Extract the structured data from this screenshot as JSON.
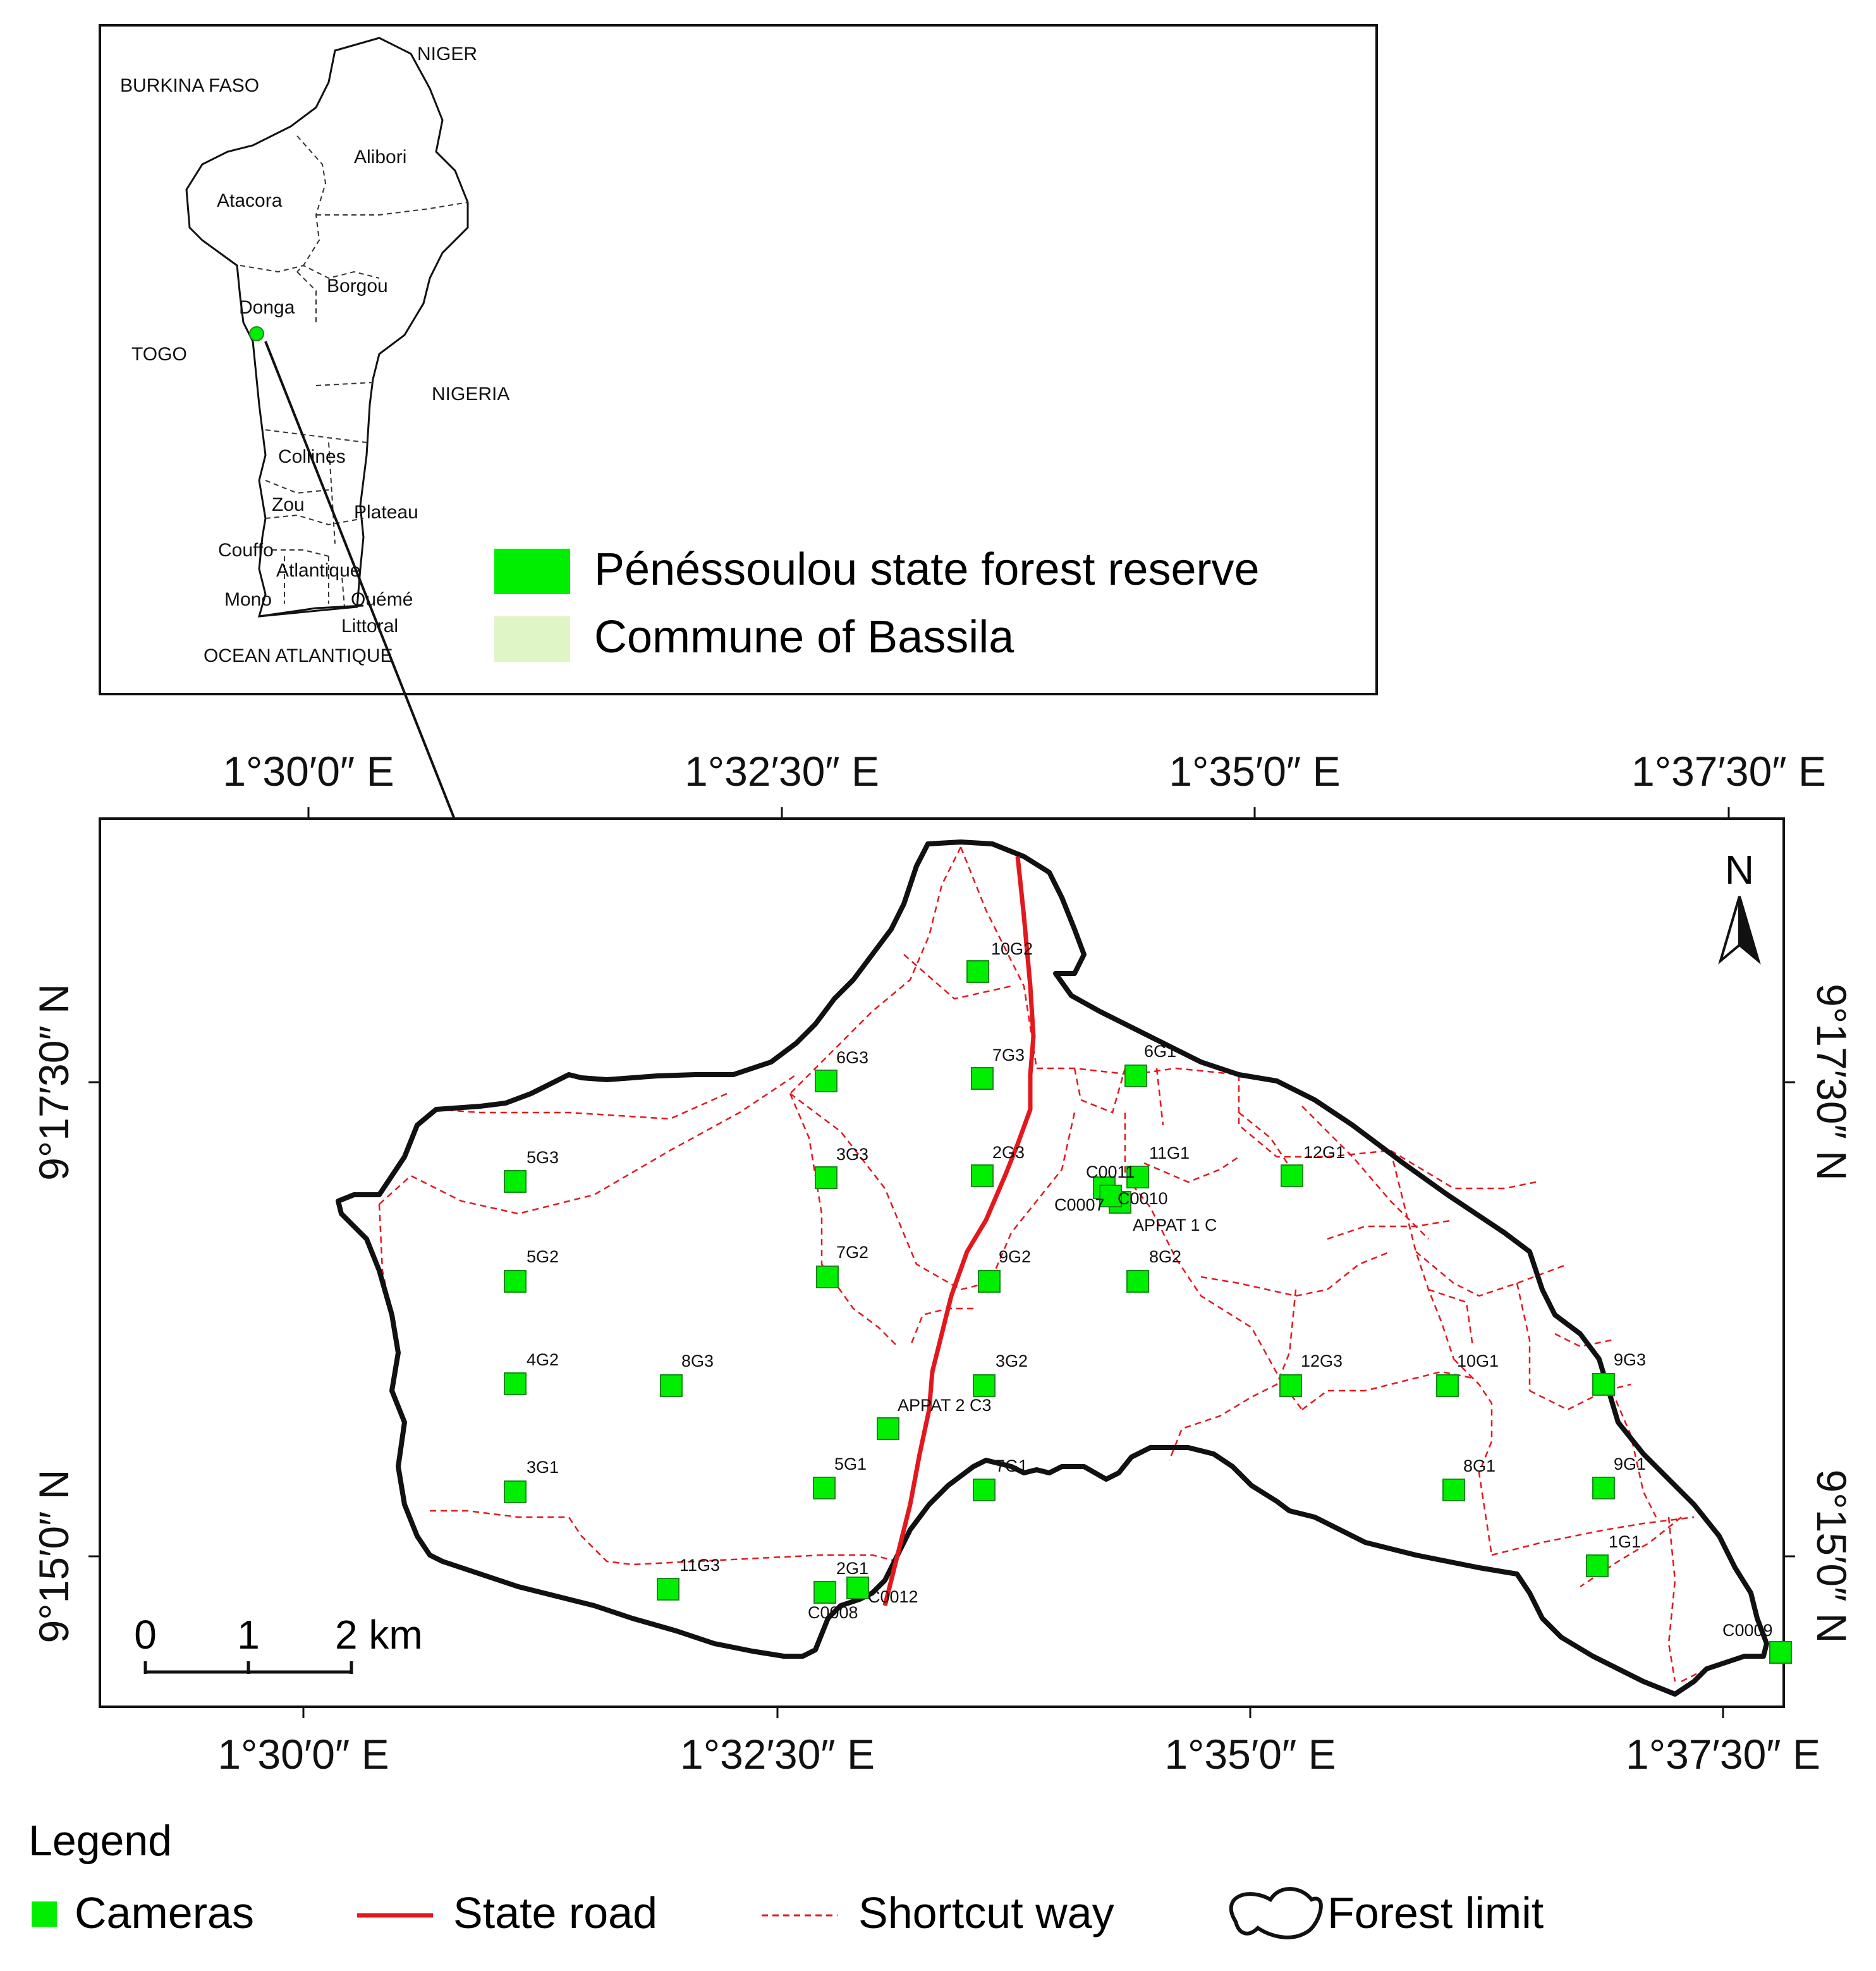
{
  "inset": {
    "countries": [
      "NIGER",
      "BURKINA FASO",
      "TOGO",
      "NIGERIA",
      "OCEAN ATLANTIQUE"
    ],
    "departments": [
      "Alibori",
      "Atacora",
      "Borgou",
      "Donga",
      "Collines",
      "Zou",
      "Plateau",
      "Couffo",
      "Atlantique",
      "Mono",
      "Ouémé",
      "Littoral"
    ],
    "legend": [
      {
        "label": "Pénéssoulou state forest reserve",
        "color": "#00ee00"
      },
      {
        "label": "Commune of Bassila",
        "color": "#dff5c5"
      }
    ]
  },
  "map": {
    "top_lon_labels": [
      "1°30′0″ E",
      "1°32′30″ E",
      "1°35′0″ E",
      "1°37′30″ E"
    ],
    "bottom_lon_labels": [
      "1°30′0″ E",
      "1°32′30″ E",
      "1°35′0″ E",
      "1°37′30″ E"
    ],
    "left_lat_labels": [
      "9°17′30″ N",
      "9°15′0″ N"
    ],
    "right_lat_labels": [
      "9°17′30″ N",
      "9°15′0″ N"
    ],
    "north_label": "N",
    "scale_bar": {
      "ticks": [
        "0",
        "1",
        "2 km"
      ]
    },
    "camera_color": "#00ee00",
    "road_color": "#e3181d",
    "cameras": [
      "10G2",
      "6G3",
      "7G3",
      "6G1",
      "5G3",
      "3G3",
      "2G3",
      "11G1",
      "12G1",
      "C0011",
      "C0010",
      "C0007",
      "APPAT 1 C",
      "5G2",
      "7G2",
      "9G2",
      "8G2",
      "4G2",
      "8G3",
      "3G2",
      "12G3",
      "10G1",
      "9G3",
      "APPAT 2 C3",
      "3G1",
      "5G1",
      "7G1",
      "8G1",
      "9G1",
      "1G1",
      "11G3",
      "2G1",
      "C0008",
      "C0012",
      "C0009"
    ]
  },
  "legend": {
    "title": "Legend",
    "items": [
      {
        "label": "Cameras",
        "icon": "square-icon"
      },
      {
        "label": "State road",
        "icon": "red-line-icon"
      },
      {
        "label": "Shortcut way",
        "icon": "dashed-line-icon"
      },
      {
        "label": "Forest limit",
        "icon": "outline-icon"
      }
    ]
  }
}
